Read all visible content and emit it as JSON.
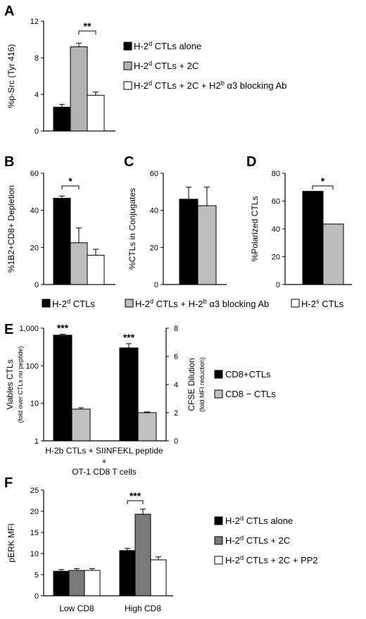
{
  "panels": {
    "A": {
      "letter": "A"
    },
    "B": {
      "letter": "B"
    },
    "C": {
      "letter": "C"
    },
    "D": {
      "letter": "D"
    },
    "E": {
      "letter": "E"
    },
    "F": {
      "letter": "F"
    }
  },
  "legend_bcd": [
    {
      "text": "H-2d CTLs",
      "color": "#000000"
    },
    {
      "text": "H-2d CTLs + H-2b α3 blocking Ab",
      "color": "#bdbdbd"
    },
    {
      "text": "H-2s CTLs",
      "color": "#ffffff"
    }
  ],
  "chart_data": [
    {
      "id": "A",
      "type": "bar",
      "ylabel": "%p-Src (Tyr 416)",
      "ylim": [
        0,
        12
      ],
      "yticks": [
        0,
        4,
        8,
        12
      ],
      "series": [
        {
          "name": "H-2d CTLs alone",
          "color": "#000000",
          "values": [
            2.6
          ],
          "errors": [
            0.3
          ]
        },
        {
          "name": "H-2d CTLs + 2C",
          "color": "#b3b3b3",
          "values": [
            9.2
          ],
          "errors": [
            0.4
          ]
        },
        {
          "name": "H-2d CTLs + 2C + H2b α3 blocking Ab",
          "color": "#ffffff",
          "values": [
            3.9
          ],
          "errors": [
            0.35
          ]
        }
      ],
      "significance": [
        {
          "label": "**",
          "from": 1,
          "to": 2
        }
      ],
      "legend": [
        {
          "text": "H-2d CTLs alone",
          "color": "#000000"
        },
        {
          "text": "H-2d CTLs + 2C",
          "color": "#b3b3b3"
        },
        {
          "text": "H-2d CTLs + 2C + H2b α3 blocking Ab",
          "color": "#ffffff"
        }
      ]
    },
    {
      "id": "B",
      "type": "bar",
      "ylabel": "%1B2+CD8+ Depletion",
      "ylim": [
        0,
        60
      ],
      "yticks": [
        0,
        20,
        40,
        60
      ],
      "series": [
        {
          "name": "H-2d CTLs",
          "color": "#000000",
          "values": [
            46.5
          ],
          "errors": [
            1.2
          ]
        },
        {
          "name": "H-2d CTLs + H-2b α3 blocking Ab",
          "color": "#bdbdbd",
          "values": [
            22.5
          ],
          "errors": [
            8
          ]
        },
        {
          "name": "H-2s CTLs",
          "color": "#ffffff",
          "values": [
            15.8
          ],
          "errors": [
            3.2
          ]
        }
      ],
      "significance": [
        {
          "label": "*",
          "from": 0,
          "to": 1
        }
      ]
    },
    {
      "id": "C",
      "type": "bar",
      "ylabel": "%CTLs in Conjugates",
      "ylim": [
        0,
        60
      ],
      "yticks": [
        0,
        20,
        40,
        60
      ],
      "series": [
        {
          "name": "H-2d CTLs",
          "color": "#000000",
          "values": [
            46
          ],
          "errors": [
            6.5
          ]
        },
        {
          "name": "H-2d CTLs + H-2b α3 blocking Ab",
          "color": "#bdbdbd",
          "values": [
            42.5
          ],
          "errors": [
            10
          ]
        }
      ],
      "significance": []
    },
    {
      "id": "D",
      "type": "bar",
      "ylabel": "%Polarized CTLs",
      "ylim": [
        0,
        80
      ],
      "yticks": [
        0,
        20,
        40,
        60,
        80
      ],
      "series": [
        {
          "name": "H-2d CTLs",
          "color": "#000000",
          "values": [
            67
          ]
        },
        {
          "name": "H-2d CTLs + H-2b α3 blocking Ab",
          "color": "#bdbdbd",
          "values": [
            43.5
          ]
        }
      ],
      "significance": [
        {
          "label": "*",
          "from": 0,
          "to": 1
        }
      ]
    },
    {
      "id": "E",
      "type": "bar",
      "ylabel": "Viables CTLs",
      "ylabel_sub": "(fold over CTLs no peptide)",
      "yscale": "log",
      "ylim": [
        1,
        1000
      ],
      "yticks": [
        "1",
        "10",
        "100",
        "1,000"
      ],
      "y2label": "CFSE Dilution",
      "y2label_sub": "(fold MFI reduction)",
      "y2lim": [
        0,
        8
      ],
      "y2ticks": [
        0,
        2,
        4,
        6,
        8
      ],
      "groups": [
        {
          "metric": "Viables CTLs",
          "values": [
            650,
            7
          ],
          "errors": [
            40,
            0.6
          ],
          "stars": "***"
        },
        {
          "metric": "CFSE Dilution",
          "values": [
            6.6,
            2.0
          ],
          "errors": [
            0.3,
            0.05
          ],
          "stars": "***"
        }
      ],
      "series": [
        {
          "name": "CD8+CTLs",
          "color": "#000000"
        },
        {
          "name": "CD8−CTLs",
          "color": "#c0c0c0"
        }
      ],
      "xlabel": [
        "H-2b CTLs + SIINFEKL peptide",
        "+",
        "OT-1 CD8 T cells"
      ],
      "legend": [
        {
          "text": "CD8+CTLs",
          "color": "#000000"
        },
        {
          "text": "CD8 − CTLs",
          "color": "#c0c0c0"
        }
      ]
    },
    {
      "id": "F",
      "type": "bar",
      "ylabel": "pERK MFI",
      "ylim": [
        0,
        25
      ],
      "yticks": [
        0,
        5,
        10,
        15,
        20,
        25
      ],
      "categories": [
        "Low CD8",
        "High CD8"
      ],
      "series": [
        {
          "name": "H-2d CTLs alone",
          "color": "#000000",
          "values": [
            5.8,
            10.7
          ],
          "errors": [
            0.4,
            0.5
          ]
        },
        {
          "name": "H-2d CTLs + 2C",
          "color": "#7a7a7a",
          "values": [
            6.0,
            19.3
          ],
          "errors": [
            0.4,
            1.2
          ]
        },
        {
          "name": "H-2d CTLs + 2C + PP2",
          "color": "#ffffff",
          "values": [
            6.0,
            8.5
          ],
          "errors": [
            0.4,
            0.7
          ]
        }
      ],
      "significance": [
        {
          "label": "***",
          "category": 1,
          "from": 0,
          "to": 1
        }
      ],
      "legend": [
        {
          "text": "H-2d CTLs alone",
          "color": "#000000"
        },
        {
          "text": "H-2d CTLs + 2C",
          "color": "#7a7a7a"
        },
        {
          "text": "H-2d CTLs + 2C + PP2",
          "color": "#ffffff"
        }
      ]
    }
  ]
}
